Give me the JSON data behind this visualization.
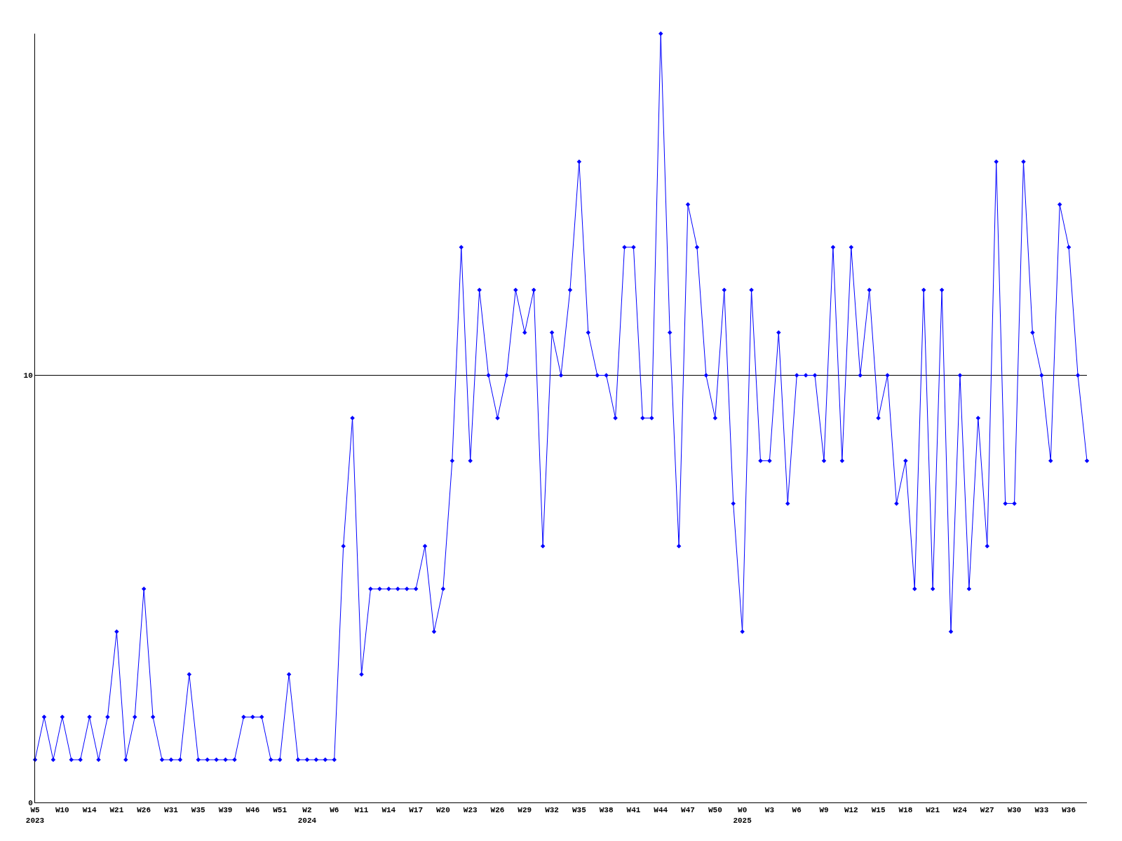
{
  "chart_data": {
    "type": "line",
    "categories": [
      "W5\n2023",
      null,
      null,
      "W10",
      null,
      null,
      "W14",
      null,
      null,
      "W21",
      null,
      null,
      "W26",
      null,
      null,
      "W31",
      null,
      null,
      "W35",
      null,
      null,
      "W39",
      null,
      null,
      "W46",
      null,
      null,
      "W51",
      null,
      null,
      "W2\n2024",
      null,
      null,
      "W6",
      null,
      null,
      "W11",
      null,
      null,
      "W14",
      null,
      null,
      "W17",
      null,
      null,
      "W20",
      null,
      null,
      "W23",
      null,
      null,
      "W26",
      null,
      null,
      "W29",
      null,
      null,
      "W32",
      null,
      null,
      "W35",
      null,
      null,
      "W38",
      null,
      null,
      "W41",
      null,
      null,
      "W44",
      null,
      null,
      "W47",
      null,
      null,
      "W50",
      null,
      null,
      "W0\n2025",
      null,
      null,
      "W3",
      null,
      null,
      "W6",
      null,
      null,
      "W9",
      null,
      null,
      "W12",
      null,
      null,
      "W15",
      null,
      null,
      "W18",
      null,
      null,
      "W21",
      null,
      null,
      "W24",
      null,
      null,
      "W27",
      null,
      null,
      "W30",
      null,
      null,
      "W33",
      null,
      null,
      "W36",
      null,
      null
    ],
    "series": [
      {
        "color": "#0000ff",
        "values": [
          1,
          2,
          1,
          2,
          1,
          1,
          2,
          1,
          2,
          4,
          1,
          2,
          5,
          2,
          1,
          1,
          1,
          3,
          1,
          1,
          1,
          1,
          1,
          2,
          2,
          2,
          1,
          1,
          3,
          1,
          1,
          1,
          1,
          1,
          6,
          9,
          3,
          5,
          5,
          5,
          5,
          5,
          5,
          6,
          4,
          5,
          8,
          13,
          8,
          12,
          10,
          9,
          10,
          12,
          11,
          12,
          6,
          11,
          10,
          12,
          15,
          11,
          10,
          10,
          9,
          13,
          13,
          9,
          9,
          18,
          11,
          6,
          14,
          13,
          10,
          9,
          12,
          7,
          4,
          12,
          8,
          8,
          11,
          7,
          10,
          10,
          10,
          8,
          13,
          8,
          13,
          10,
          12,
          9,
          10,
          7,
          8,
          5,
          12,
          5,
          12,
          4,
          10,
          5,
          9,
          6,
          15,
          7,
          7,
          15,
          11,
          10,
          8,
          14,
          13,
          10,
          8
        ]
      }
    ],
    "ylim": [
      0,
      18
    ],
    "yticks": [
      0,
      10
    ],
    "grid": "y",
    "marker": "diamond",
    "line_style": "solid",
    "legend": false
  }
}
